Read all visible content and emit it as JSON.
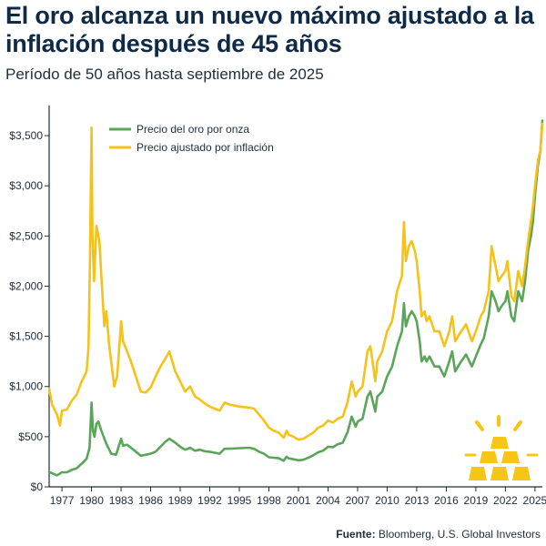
{
  "header": {
    "title": "El oro alcanza un nuevo máximo ajustado a la inflación después de 45 años",
    "subtitle": "Período de 50 años hasta septiembre de 2025"
  },
  "footer": {
    "source_label": "Fuente:",
    "source_text": " Bloomberg, U.S. Global Investors"
  },
  "colors": {
    "nominal": "#5aa55a",
    "adjusted": "#f5c21a",
    "axis": "#1e2d3b",
    "gold_bar": "#f5c518"
  },
  "icons": {
    "decoration": "gold-bars-icon"
  },
  "chart_data": {
    "type": "line",
    "title": "El oro alcanza un nuevo máximo ajustado a la inflación después de 45 años",
    "subtitle": "Período de 50 años hasta septiembre de 2025",
    "xlabel": "",
    "ylabel": "",
    "xlim": [
      1975.7,
      2025.75
    ],
    "ylim": [
      0,
      3800
    ],
    "y_ticks": [
      0,
      500,
      1000,
      1500,
      2000,
      2500,
      3000,
      3500
    ],
    "y_tick_labels": [
      "$0",
      "$500",
      "$1,000",
      "$1,500",
      "$2,000",
      "$2,500",
      "$3,000",
      "$3,500"
    ],
    "x_ticks": [
      1977,
      1980,
      1983,
      1986,
      1989,
      1992,
      1995,
      1998,
      2001,
      2004,
      2007,
      2010,
      2013,
      2016,
      2019,
      2022,
      2025
    ],
    "x_tick_labels": [
      "1977",
      "1980",
      "1983",
      "1986",
      "1989",
      "1992",
      "1995",
      "1998",
      "2001",
      "2004",
      "2007",
      "2010",
      "2013",
      "2016",
      "2019",
      "2022",
      "2025"
    ],
    "grid": false,
    "legend_position": "top-left",
    "series": [
      {
        "name": "Precio del oro por onza",
        "color": "#5aa55a",
        "points": [
          [
            1975.7,
            150
          ],
          [
            1976.0,
            135
          ],
          [
            1976.5,
            115
          ],
          [
            1977.0,
            145
          ],
          [
            1977.5,
            145
          ],
          [
            1978.0,
            170
          ],
          [
            1978.5,
            185
          ],
          [
            1979.0,
            230
          ],
          [
            1979.5,
            280
          ],
          [
            1979.8,
            390
          ],
          [
            1980.0,
            840
          ],
          [
            1980.15,
            560
          ],
          [
            1980.3,
            500
          ],
          [
            1980.5,
            630
          ],
          [
            1980.7,
            650
          ],
          [
            1981.0,
            560
          ],
          [
            1981.5,
            430
          ],
          [
            1982.0,
            330
          ],
          [
            1982.5,
            320
          ],
          [
            1983.0,
            480
          ],
          [
            1983.2,
            410
          ],
          [
            1983.6,
            420
          ],
          [
            1984.0,
            390
          ],
          [
            1984.5,
            350
          ],
          [
            1985.0,
            310
          ],
          [
            1985.5,
            320
          ],
          [
            1986.0,
            330
          ],
          [
            1986.5,
            350
          ],
          [
            1987.0,
            400
          ],
          [
            1987.5,
            450
          ],
          [
            1987.9,
            480
          ],
          [
            1988.5,
            440
          ],
          [
            1989.0,
            400
          ],
          [
            1989.5,
            370
          ],
          [
            1990.0,
            390
          ],
          [
            1990.5,
            360
          ],
          [
            1991.0,
            370
          ],
          [
            1991.5,
            355
          ],
          [
            1992.0,
            350
          ],
          [
            1992.5,
            340
          ],
          [
            1993.0,
            330
          ],
          [
            1993.5,
            380
          ],
          [
            1994.0,
            380
          ],
          [
            1995.0,
            385
          ],
          [
            1996.0,
            390
          ],
          [
            1996.5,
            380
          ],
          [
            1997.0,
            350
          ],
          [
            1997.5,
            330
          ],
          [
            1998.0,
            295
          ],
          [
            1998.5,
            290
          ],
          [
            1999.0,
            285
          ],
          [
            1999.5,
            260
          ],
          [
            1999.8,
            300
          ],
          [
            2000.0,
            285
          ],
          [
            2000.5,
            275
          ],
          [
            2001.0,
            265
          ],
          [
            2001.5,
            270
          ],
          [
            2002.0,
            290
          ],
          [
            2002.5,
            315
          ],
          [
            2003.0,
            345
          ],
          [
            2003.5,
            360
          ],
          [
            2004.0,
            400
          ],
          [
            2004.5,
            395
          ],
          [
            2005.0,
            425
          ],
          [
            2005.5,
            440
          ],
          [
            2006.0,
            550
          ],
          [
            2006.4,
            700
          ],
          [
            2006.8,
            600
          ],
          [
            2007.0,
            650
          ],
          [
            2007.5,
            680
          ],
          [
            2008.0,
            900
          ],
          [
            2008.3,
            950
          ],
          [
            2008.8,
            750
          ],
          [
            2009.0,
            900
          ],
          [
            2009.5,
            950
          ],
          [
            2010.0,
            1100
          ],
          [
            2010.5,
            1200
          ],
          [
            2011.0,
            1400
          ],
          [
            2011.5,
            1550
          ],
          [
            2011.7,
            1830
          ],
          [
            2011.9,
            1600
          ],
          [
            2012.2,
            1700
          ],
          [
            2012.5,
            1750
          ],
          [
            2012.8,
            1700
          ],
          [
            2013.0,
            1650
          ],
          [
            2013.3,
            1450
          ],
          [
            2013.5,
            1250
          ],
          [
            2013.8,
            1300
          ],
          [
            2014.0,
            1250
          ],
          [
            2014.3,
            1300
          ],
          [
            2014.8,
            1200
          ],
          [
            2015.3,
            1200
          ],
          [
            2015.8,
            1100
          ],
          [
            2016.3,
            1250
          ],
          [
            2016.6,
            1350
          ],
          [
            2016.9,
            1150
          ],
          [
            2017.5,
            1250
          ],
          [
            2018.0,
            1320
          ],
          [
            2018.6,
            1200
          ],
          [
            2019.0,
            1300
          ],
          [
            2019.5,
            1420
          ],
          [
            2019.8,
            1480
          ],
          [
            2020.3,
            1700
          ],
          [
            2020.6,
            1950
          ],
          [
            2021.0,
            1850
          ],
          [
            2021.3,
            1750
          ],
          [
            2021.6,
            1800
          ],
          [
            2022.0,
            1850
          ],
          [
            2022.2,
            1950
          ],
          [
            2022.6,
            1700
          ],
          [
            2022.9,
            1650
          ],
          [
            2023.3,
            1950
          ],
          [
            2023.7,
            1850
          ],
          [
            2024.0,
            2050
          ],
          [
            2024.3,
            2350
          ],
          [
            2024.6,
            2500
          ],
          [
            2024.8,
            2650
          ],
          [
            2025.0,
            2900
          ],
          [
            2025.3,
            3200
          ],
          [
            2025.55,
            3350
          ],
          [
            2025.75,
            3650
          ]
        ]
      },
      {
        "name": "Precio ajustado por inflación",
        "color": "#f5c21a",
        "points": [
          [
            1975.7,
            980
          ],
          [
            1976.0,
            820
          ],
          [
            1976.5,
            720
          ],
          [
            1976.8,
            610
          ],
          [
            1977.0,
            760
          ],
          [
            1977.5,
            770
          ],
          [
            1978.0,
            860
          ],
          [
            1978.5,
            920
          ],
          [
            1979.0,
            1050
          ],
          [
            1979.5,
            1150
          ],
          [
            1979.7,
            1400
          ],
          [
            1979.85,
            2300
          ],
          [
            1980.0,
            3580
          ],
          [
            1980.1,
            2500
          ],
          [
            1980.25,
            2050
          ],
          [
            1980.5,
            2600
          ],
          [
            1980.8,
            2450
          ],
          [
            1981.0,
            2100
          ],
          [
            1981.3,
            1600
          ],
          [
            1981.5,
            1750
          ],
          [
            1981.8,
            1400
          ],
          [
            1982.0,
            1250
          ],
          [
            1982.3,
            1000
          ],
          [
            1982.6,
            1100
          ],
          [
            1983.0,
            1650
          ],
          [
            1983.2,
            1450
          ],
          [
            1983.6,
            1350
          ],
          [
            1984.0,
            1250
          ],
          [
            1984.5,
            1100
          ],
          [
            1985.0,
            950
          ],
          [
            1985.5,
            940
          ],
          [
            1986.0,
            990
          ],
          [
            1986.5,
            1100
          ],
          [
            1987.0,
            1200
          ],
          [
            1987.5,
            1280
          ],
          [
            1987.9,
            1350
          ],
          [
            1988.5,
            1150
          ],
          [
            1989.0,
            1050
          ],
          [
            1989.5,
            950
          ],
          [
            1990.0,
            1000
          ],
          [
            1990.5,
            900
          ],
          [
            1991.0,
            870
          ],
          [
            1991.5,
            830
          ],
          [
            1992.0,
            800
          ],
          [
            1992.5,
            780
          ],
          [
            1993.0,
            760
          ],
          [
            1993.5,
            840
          ],
          [
            1994.0,
            820
          ],
          [
            1995.0,
            800
          ],
          [
            1996.0,
            790
          ],
          [
            1996.5,
            780
          ],
          [
            1997.0,
            720
          ],
          [
            1997.5,
            660
          ],
          [
            1998.0,
            590
          ],
          [
            1998.5,
            560
          ],
          [
            1999.0,
            540
          ],
          [
            1999.5,
            490
          ],
          [
            1999.8,
            560
          ],
          [
            2000.0,
            520
          ],
          [
            2000.5,
            500
          ],
          [
            2001.0,
            470
          ],
          [
            2001.5,
            480
          ],
          [
            2002.0,
            510
          ],
          [
            2002.5,
            540
          ],
          [
            2003.0,
            590
          ],
          [
            2003.5,
            610
          ],
          [
            2004.0,
            660
          ],
          [
            2004.5,
            640
          ],
          [
            2005.0,
            680
          ],
          [
            2005.5,
            700
          ],
          [
            2006.0,
            850
          ],
          [
            2006.4,
            1050
          ],
          [
            2006.8,
            900
          ],
          [
            2007.0,
            950
          ],
          [
            2007.5,
            1000
          ],
          [
            2008.0,
            1350
          ],
          [
            2008.3,
            1400
          ],
          [
            2008.8,
            1050
          ],
          [
            2009.0,
            1250
          ],
          [
            2009.5,
            1350
          ],
          [
            2010.0,
            1550
          ],
          [
            2010.5,
            1650
          ],
          [
            2011.0,
            1950
          ],
          [
            2011.5,
            2100
          ],
          [
            2011.7,
            2640
          ],
          [
            2011.9,
            2250
          ],
          [
            2012.2,
            2400
          ],
          [
            2012.5,
            2450
          ],
          [
            2012.8,
            2350
          ],
          [
            2013.0,
            2250
          ],
          [
            2013.3,
            1950
          ],
          [
            2013.5,
            1700
          ],
          [
            2013.8,
            1750
          ],
          [
            2014.0,
            1650
          ],
          [
            2014.3,
            1700
          ],
          [
            2014.8,
            1550
          ],
          [
            2015.3,
            1550
          ],
          [
            2015.8,
            1400
          ],
          [
            2016.3,
            1550
          ],
          [
            2016.6,
            1700
          ],
          [
            2016.9,
            1450
          ],
          [
            2017.5,
            1550
          ],
          [
            2018.0,
            1620
          ],
          [
            2018.6,
            1450
          ],
          [
            2019.0,
            1550
          ],
          [
            2019.5,
            1700
          ],
          [
            2019.8,
            1750
          ],
          [
            2020.3,
            1950
          ],
          [
            2020.6,
            2400
          ],
          [
            2021.0,
            2200
          ],
          [
            2021.3,
            2050
          ],
          [
            2021.6,
            2100
          ],
          [
            2022.0,
            2150
          ],
          [
            2022.2,
            2250
          ],
          [
            2022.6,
            1900
          ],
          [
            2022.9,
            1850
          ],
          [
            2023.3,
            2150
          ],
          [
            2023.7,
            2000
          ],
          [
            2024.0,
            2200
          ],
          [
            2024.3,
            2450
          ],
          [
            2024.6,
            2650
          ],
          [
            2024.8,
            2800
          ],
          [
            2025.0,
            3000
          ],
          [
            2025.3,
            3250
          ],
          [
            2025.55,
            3350
          ],
          [
            2025.75,
            3620
          ]
        ]
      }
    ]
  }
}
